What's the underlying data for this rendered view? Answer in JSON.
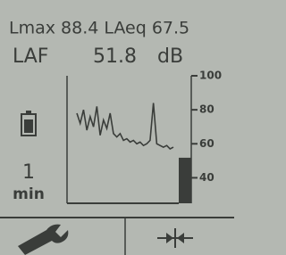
{
  "header": {
    "line1": "Lmax 88.4 LAeq 67.5",
    "label": "LAF",
    "level": 51.8,
    "unit": "dB"
  },
  "sidebar": {
    "interval": "1",
    "unit": "min"
  },
  "graph": {
    "ylim": [
      25,
      100
    ],
    "yticks": [
      100,
      80,
      60,
      40
    ],
    "values": [
      78,
      72,
      80,
      68,
      76,
      70,
      82,
      65,
      74,
      69,
      78,
      66,
      64,
      66,
      62,
      63,
      61,
      62,
      60,
      61,
      59,
      60,
      62,
      84,
      60,
      59,
      58,
      59,
      57,
      58
    ]
  }
}
